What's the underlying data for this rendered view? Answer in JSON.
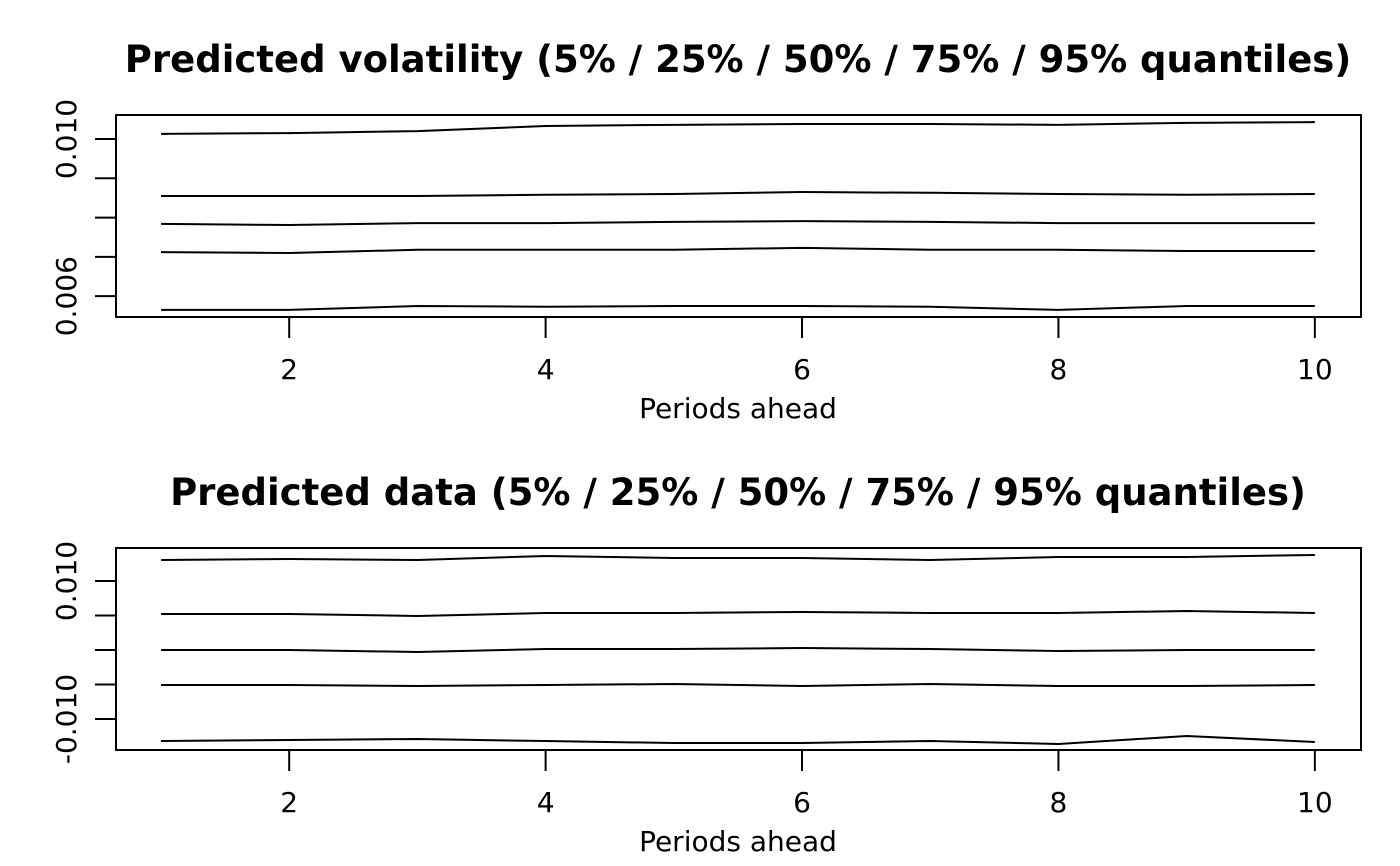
{
  "chart_data": [
    {
      "type": "line",
      "title": "Predicted volatility (5% / 25% / 50% / 75% / 95% quantiles)",
      "x_label": "Periods ahead",
      "x": [
        1,
        2,
        3,
        4,
        5,
        6,
        7,
        8,
        9,
        10
      ],
      "series": [
        {
          "color": "#000000",
          "values": [
            0.01013,
            0.01015,
            0.0102,
            0.01033,
            0.01036,
            0.01038,
            0.01038,
            0.01036,
            0.01041,
            0.01043
          ]
        },
        {
          "color": "#000000",
          "values": [
            0.00855,
            0.00855,
            0.00855,
            0.00858,
            0.0086,
            0.00865,
            0.00863,
            0.0086,
            0.00858,
            0.0086
          ]
        },
        {
          "color": "#000000",
          "values": [
            0.00784,
            0.00781,
            0.00786,
            0.00786,
            0.00789,
            0.00791,
            0.00789,
            0.00786,
            0.00786,
            0.00786
          ]
        },
        {
          "color": "#000000",
          "values": [
            0.00712,
            0.0071,
            0.00718,
            0.00718,
            0.00718,
            0.00723,
            0.00718,
            0.00718,
            0.00715,
            0.00715
          ]
        },
        {
          "color": "#000000",
          "values": [
            0.00565,
            0.00565,
            0.00575,
            0.00573,
            0.00575,
            0.00575,
            0.00573,
            0.00565,
            0.00575,
            0.00575
          ]
        }
      ],
      "xlim": [
        0.649,
        10.36
      ],
      "xticks": [
        2,
        4,
        6,
        8,
        10
      ],
      "ylim": [
        0.00547,
        0.01061
      ],
      "yticks": [
        {
          "value": 0.01,
          "label": "0.010"
        },
        {
          "value": 0.006,
          "label": "0.006"
        }
      ],
      "yticks_unlabeled": [
        0.009,
        0.008,
        0.007
      ]
    },
    {
      "type": "line",
      "title": "Predicted data (5% / 25% / 50% / 75% / 95% quantiles)",
      "x_label": "Periods ahead",
      "x": [
        1,
        2,
        3,
        4,
        5,
        6,
        7,
        8,
        9,
        10
      ],
      "series": [
        {
          "color": "#000000",
          "values": [
            0.01304,
            0.01319,
            0.01304,
            0.01362,
            0.01333,
            0.01333,
            0.01304,
            0.01348,
            0.01348,
            0.01377
          ]
        },
        {
          "color": "#000000",
          "values": [
            0.00522,
            0.00522,
            0.00493,
            0.00536,
            0.00536,
            0.00551,
            0.00536,
            0.00536,
            0.00565,
            0.00536
          ]
        },
        {
          "color": "#000000",
          "values": [
            0,
            0,
            -0.00029,
            0.00014,
            0.00014,
            0.00029,
            0.00014,
            -0.00014,
            0,
            0
          ]
        },
        {
          "color": "#000000",
          "values": [
            -0.00507,
            -0.00507,
            -0.00522,
            -0.00507,
            -0.00493,
            -0.00522,
            -0.00493,
            -0.00522,
            -0.00522,
            -0.00507
          ]
        },
        {
          "color": "#000000",
          "values": [
            -0.01319,
            -0.01304,
            -0.0129,
            -0.01319,
            -0.01348,
            -0.01348,
            -0.01319,
            -0.01362,
            -0.01246,
            -0.01333
          ]
        }
      ],
      "xlim": [
        0.649,
        10.36
      ],
      "xticks": [
        2,
        4,
        6,
        8,
        10
      ],
      "ylim": [
        -0.01449,
        0.01478
      ],
      "yticks": [
        {
          "value": 0.01,
          "label": "0.010"
        },
        {
          "value": -0.01,
          "label": "-0.010"
        }
      ],
      "yticks_unlabeled": [
        0.005,
        0,
        -0.005
      ]
    }
  ]
}
